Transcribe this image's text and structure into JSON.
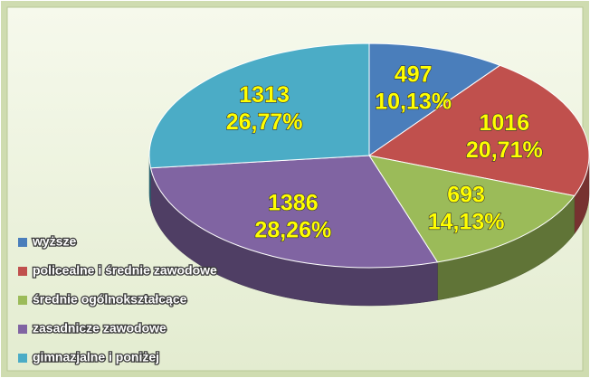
{
  "chart_data": {
    "type": "pie",
    "categories": [
      "wyższe",
      "policealne i średnie zawodowe",
      "średnie ogólnokształcące",
      "zasadnicze zawodowe",
      "gimnazjalne i poniżej"
    ],
    "values": [
      497,
      1016,
      693,
      1386,
      1313
    ],
    "percent_labels": [
      "10,13%",
      "20,71%",
      "14,13%",
      "28,26%",
      "26,77%"
    ],
    "colors": [
      "#4a7ebb",
      "#c0504d",
      "#9bbb59",
      "#8064a2",
      "#4bacc6"
    ],
    "legend": "bottom-left"
  }
}
